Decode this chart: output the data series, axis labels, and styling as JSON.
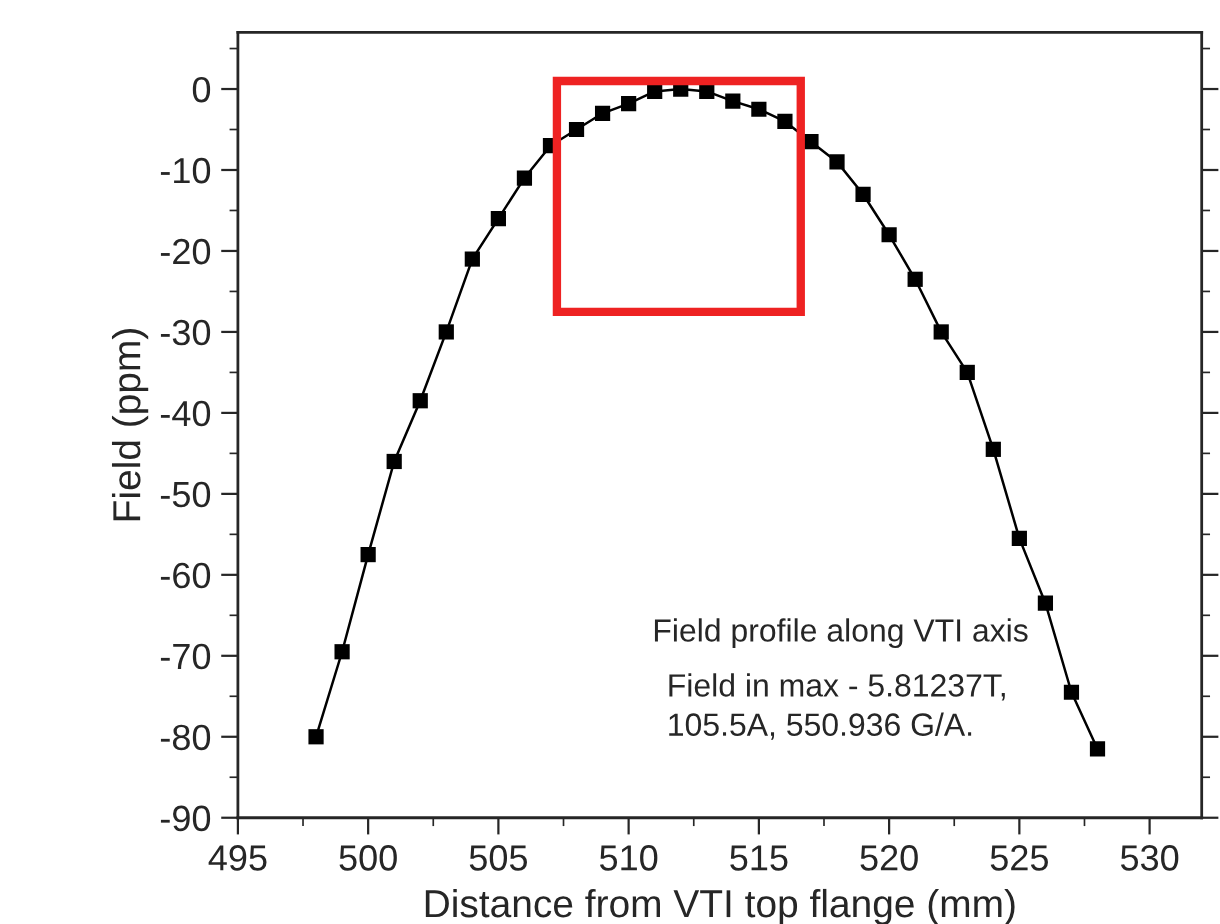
{
  "chart_data": {
    "type": "line",
    "xlabel": "Distance from VTI top flange (mm)",
    "ylabel": "Field (ppm)",
    "x": [
      498,
      499,
      500,
      501,
      502,
      503,
      504,
      505,
      506,
      507,
      508,
      509,
      510,
      511,
      512,
      513,
      514,
      515,
      516,
      517,
      518,
      519,
      520,
      521,
      522,
      523,
      524,
      525,
      526,
      527,
      528
    ],
    "series": [
      {
        "color": "#000000",
        "values": [
          -80,
          -69.5,
          -57.5,
          -46,
          -38.5,
          -30,
          -21,
          -16,
          -11,
          -7,
          -5,
          -3,
          -1.8,
          -0.3,
          0,
          -0.3,
          -1.5,
          -2.5,
          -4,
          -6.5,
          -9,
          -13,
          -18,
          -23.5,
          -30,
          -35,
          -44.5,
          -55.5,
          -63.5,
          -74.5,
          -81.5
        ]
      }
    ],
    "xlim": [
      495,
      532
    ],
    "xticks": [
      495,
      500,
      505,
      510,
      515,
      520,
      525,
      530
    ],
    "ylim": [
      -90,
      7
    ],
    "yticks": [
      -90,
      -80,
      -70,
      -60,
      -50,
      -40,
      -30,
      -20,
      -10,
      0
    ],
    "marker": "square",
    "line_style": "solid",
    "grid": false,
    "legend": false,
    "annotations": [
      "Field profile along VTI axis",
      "Field in max - 5.81237T,",
      "105.5A, 550.936 G/A."
    ]
  }
}
